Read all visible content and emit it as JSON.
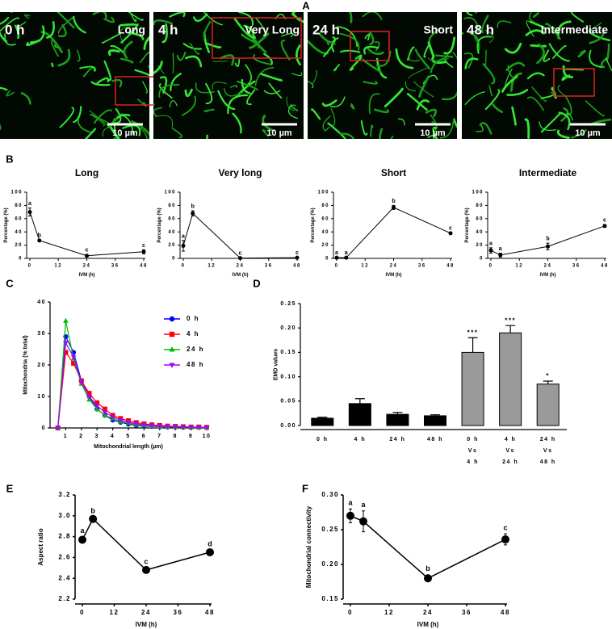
{
  "panel_labels": [
    "A",
    "B",
    "C",
    "D",
    "E",
    "F"
  ],
  "panel_a": {
    "images": [
      {
        "time": "0 h",
        "label": "Long",
        "scale_bar": "10 µm"
      },
      {
        "time": "4 h",
        "label": "Very Long",
        "scale_bar": "10 µm"
      },
      {
        "time": "24 h",
        "label": "Short",
        "scale_bar": "10 µm"
      },
      {
        "time": "48 h",
        "label": "Intermediate",
        "scale_bar": "10 µm"
      }
    ]
  },
  "chart_data": [
    {
      "type": "line",
      "title": "Long",
      "x": [
        0,
        4,
        24,
        48
      ],
      "values": [
        70,
        27,
        4,
        10
      ],
      "errors": [
        6,
        1,
        2,
        3
      ],
      "point_labels": [
        "a",
        "b",
        "c",
        "c"
      ],
      "color": "#000000",
      "xlim": [
        0,
        48
      ],
      "ylim": [
        0,
        100
      ],
      "xticks": [
        0,
        12,
        24,
        36,
        48
      ],
      "yticks": [
        0,
        20,
        40,
        60,
        80,
        100
      ],
      "xlabel": "IVM (h)",
      "ylabel": "Percentage (%)"
    },
    {
      "type": "line",
      "title": "Very long",
      "x": [
        0,
        4,
        24,
        48
      ],
      "values": [
        19,
        68,
        0.5,
        1
      ],
      "errors": [
        8,
        4,
        0.5,
        0.5
      ],
      "point_labels": [
        "a",
        "b",
        "c",
        "c"
      ],
      "color": "#000000",
      "xlim": [
        0,
        48
      ],
      "ylim": [
        0,
        100
      ],
      "xticks": [
        0,
        12,
        24,
        36,
        48
      ],
      "yticks": [
        0,
        20,
        40,
        60,
        80,
        100
      ],
      "xlabel": "IVM (h)",
      "ylabel": "Percentage (%)"
    },
    {
      "type": "line",
      "title": "Short",
      "x": [
        0,
        4,
        24,
        48
      ],
      "values": [
        1,
        1,
        77,
        38
      ],
      "errors": [
        0.5,
        0.5,
        3,
        1
      ],
      "point_labels": [
        "a",
        "a",
        "b",
        "c"
      ],
      "color": "#000000",
      "xlim": [
        0,
        48
      ],
      "ylim": [
        0,
        100
      ],
      "xticks": [
        0,
        12,
        24,
        36,
        48
      ],
      "yticks": [
        0,
        20,
        40,
        60,
        80,
        100
      ],
      "xlabel": "IVM (h)",
      "ylabel": "Percentage (%)"
    },
    {
      "type": "line",
      "title": "Intermediate",
      "x": [
        0,
        4,
        24,
        48
      ],
      "values": [
        12,
        5,
        18,
        49
      ],
      "errors": [
        4,
        3,
        5,
        2
      ],
      "point_labels": [
        "a",
        "a",
        "b",
        "c"
      ],
      "color": "#000000",
      "xlim": [
        0,
        48
      ],
      "ylim": [
        0,
        100
      ],
      "xticks": [
        0,
        12,
        24,
        36,
        48
      ],
      "yticks": [
        0,
        20,
        40,
        60,
        80,
        100
      ],
      "xlabel": "IVM (h)",
      "ylabel": "Percentage (%)"
    },
    {
      "type": "line",
      "x": [
        0.5,
        1,
        1.5,
        2,
        2.5,
        3,
        3.5,
        4,
        4.5,
        5,
        5.5,
        6,
        6.5,
        7,
        7.5,
        8,
        8.5,
        9,
        9.5,
        10
      ],
      "series": [
        {
          "name": "0 h",
          "color": "#0000ff",
          "marker": "circle",
          "values": [
            0,
            29,
            24,
            15,
            10,
            6,
            4,
            2.5,
            1.8,
            1.2,
            0.8,
            0.6,
            0.5,
            0.4,
            0.3,
            0.3,
            0.2,
            0.2,
            0.2,
            0.2
          ]
        },
        {
          "name": "4 h",
          "color": "#ff0000",
          "marker": "square",
          "values": [
            0,
            24,
            20.5,
            15,
            11,
            8,
            6,
            4,
            3,
            2.3,
            1.7,
            1.3,
            1,
            0.8,
            0.6,
            0.5,
            0.4,
            0.3,
            0.3,
            0.2
          ]
        },
        {
          "name": "24 h",
          "color": "#00bb00",
          "marker": "triangle",
          "values": [
            0,
            34,
            22,
            14,
            9,
            6,
            4,
            3,
            2,
            1.5,
            1,
            0.8,
            0.6,
            0.5,
            0.4,
            0.3,
            0.3,
            0.2,
            0.2,
            0.2
          ]
        },
        {
          "name": "48 h",
          "color": "#aa00ff",
          "marker": "triangle-down",
          "values": [
            0,
            27,
            22.5,
            14.5,
            10,
            7,
            5,
            3.5,
            2.5,
            1.8,
            1.3,
            1,
            0.8,
            0.6,
            0.5,
            0.4,
            0.3,
            0.3,
            0.2,
            0.2
          ]
        }
      ],
      "xlim": [
        0,
        10
      ],
      "ylim": [
        0,
        40
      ],
      "xticks": [
        1,
        2,
        3,
        4,
        5,
        6,
        7,
        8,
        9,
        10
      ],
      "yticks": [
        0,
        10,
        20,
        30,
        40
      ],
      "xlabel": "Mitochondrial length (µm)",
      "ylabel": "Mitochondria (% total)"
    },
    {
      "type": "bar",
      "categories": [
        [
          "0 h"
        ],
        [
          "4 h"
        ],
        [
          "24 h"
        ],
        [
          "48 h"
        ],
        [
          "0 h",
          "Vs",
          "4 h"
        ],
        [
          "4 h",
          "Vs",
          "24 h"
        ],
        [
          "24 h",
          "Vs",
          "48 h"
        ]
      ],
      "values": [
        0.015,
        0.045,
        0.023,
        0.02,
        0.15,
        0.19,
        0.085
      ],
      "errors": [
        0.002,
        0.01,
        0.004,
        0.002,
        0.03,
        0.015,
        0.006
      ],
      "colors": [
        "#000000",
        "#000000",
        "#000000",
        "#000000",
        "#9a9a9a",
        "#9a9a9a",
        "#9a9a9a"
      ],
      "value_annotations": [
        null,
        null,
        null,
        null,
        "***",
        "***",
        "*"
      ],
      "ylim": [
        0,
        0.25
      ],
      "yticks": [
        {
          "value": 0,
          "label": "0.00"
        },
        0.05,
        {
          "value": 0.1,
          "label": "0.10"
        },
        0.15,
        {
          "value": 0.2,
          "label": "0.20"
        },
        0.25
      ],
      "ylabel": "EMD values"
    },
    {
      "type": "line",
      "x": [
        0,
        4,
        24,
        48
      ],
      "values": [
        2.77,
        2.97,
        2.48,
        2.65
      ],
      "errors": [
        0.03,
        0.02,
        0.02,
        0.02
      ],
      "point_labels": [
        "a",
        "b",
        "c",
        "d"
      ],
      "color": "#000000",
      "xlim": [
        0,
        48
      ],
      "ylim": [
        2.2,
        3.2
      ],
      "xticks": [
        0,
        12,
        24,
        36,
        48
      ],
      "yticks": [
        2.2,
        2.4,
        2.6,
        2.8,
        {
          "value": 3,
          "label": "3.0"
        },
        3.2
      ],
      "xlabel": "IVM (h)",
      "ylabel": "Aspect ratio"
    },
    {
      "type": "line",
      "x": [
        0,
        4,
        24,
        48
      ],
      "values": [
        0.27,
        0.262,
        0.18,
        0.236
      ],
      "errors": [
        0.01,
        0.015,
        0.005,
        0.008
      ],
      "point_labels": [
        "a",
        "a",
        "b",
        "c"
      ],
      "color": "#000000",
      "xlim": [
        0,
        48
      ],
      "ylim": [
        0.15,
        0.3
      ],
      "xticks": [
        0,
        12,
        24,
        36,
        48
      ],
      "yticks": [
        0.15,
        {
          "value": 0.2,
          "label": "0.20"
        },
        0.25,
        {
          "value": 0.3,
          "label": "0.30"
        }
      ],
      "xlabel": "IVM (h)",
      "ylabel": "Mitochondrial connectivity"
    }
  ]
}
